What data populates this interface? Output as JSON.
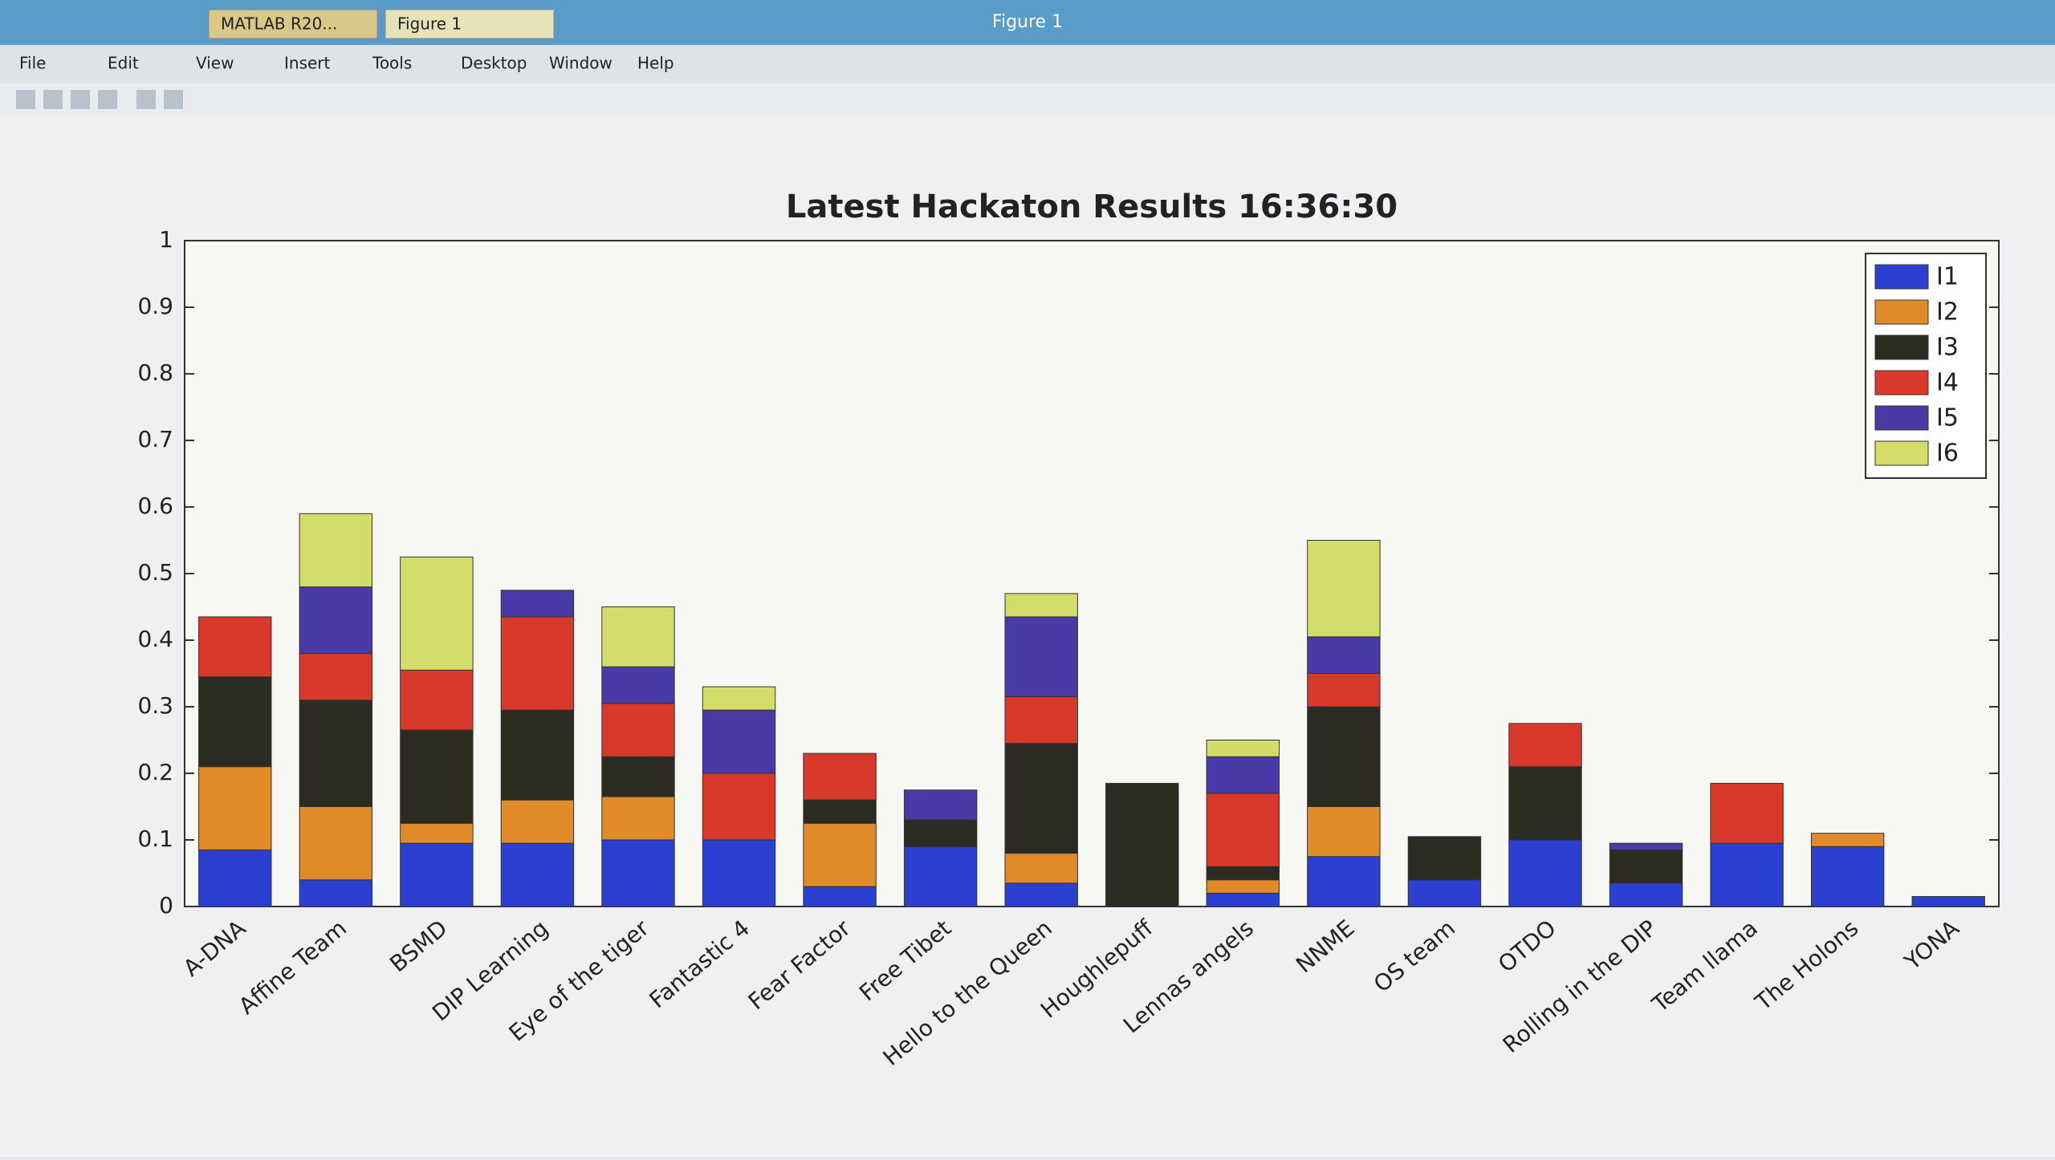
{
  "window": {
    "title": "Figure 1",
    "tabs": [
      "MATLAB R20...",
      "Figure 1"
    ],
    "menu": [
      "File",
      "Edit",
      "View",
      "Insert",
      "Tools",
      "Desktop",
      "Window",
      "Help"
    ]
  },
  "chart_data": {
    "type": "stacked-bar",
    "title": "Latest Hackaton Results 16:36:30",
    "categories": [
      "A-DNA",
      "Affine Team",
      "BSMD",
      "DIP Learning",
      "Eye of the tiger",
      "Fantastic 4",
      "Fear Factor",
      "Free Tibet",
      "Hello to the Queen",
      "Houghlepuff",
      "Lennas angels",
      "NNME",
      "OS team",
      "OTDO",
      "Rolling in the DIP",
      "Team llama",
      "The Holons",
      "YONA"
    ],
    "series": [
      {
        "name": "I1",
        "color": "#2b3fd1",
        "values": [
          0.085,
          0.04,
          0.095,
          0.095,
          0.1,
          0.1,
          0.03,
          0.09,
          0.035,
          0,
          0.02,
          0.075,
          0.04,
          0.1,
          0.035,
          0.095,
          0.09,
          0.015
        ]
      },
      {
        "name": "I2",
        "color": "#e08a28",
        "values": [
          0.125,
          0.11,
          0.03,
          0.065,
          0.065,
          0,
          0.095,
          0,
          0.045,
          0,
          0.02,
          0.075,
          0,
          0,
          0,
          0,
          0.02,
          0
        ]
      },
      {
        "name": "I3",
        "color": "#2b2b22",
        "values": [
          0.135,
          0.16,
          0.14,
          0.135,
          0.06,
          0,
          0.035,
          0.04,
          0.165,
          0.185,
          0.02,
          0.15,
          0.065,
          0.11,
          0.05,
          0,
          0,
          0
        ]
      },
      {
        "name": "I4",
        "color": "#d8392a",
        "values": [
          0.09,
          0.07,
          0.09,
          0.14,
          0.08,
          0.1,
          0.07,
          0,
          0.07,
          0,
          0.11,
          0.05,
          0,
          0.065,
          0,
          0.09,
          0,
          0
        ]
      },
      {
        "name": "I5",
        "color": "#4a3aa8",
        "values": [
          0,
          0.1,
          0,
          0.04,
          0.055,
          0.095,
          0,
          0.045,
          0.12,
          0,
          0.055,
          0.055,
          0,
          0,
          0.01,
          0,
          0,
          0
        ]
      },
      {
        "name": "I6",
        "color": "#d4dc6a",
        "values": [
          0,
          0.11,
          0.17,
          0,
          0.09,
          0.035,
          0,
          0,
          0.035,
          0,
          0.025,
          0.145,
          0,
          0,
          0,
          0,
          0,
          0
        ]
      }
    ],
    "ylim": [
      0,
      1
    ],
    "yticks": [
      0,
      0.1,
      0.2,
      0.3,
      0.4,
      0.5,
      0.6,
      0.7,
      0.8,
      0.9,
      1
    ],
    "grid": false,
    "legend": "upper right"
  }
}
